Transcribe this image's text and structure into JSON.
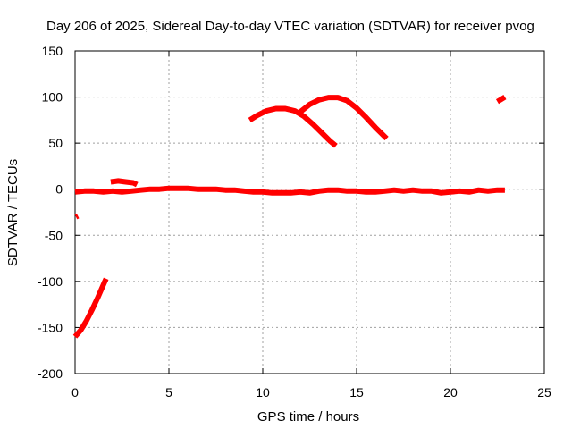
{
  "chart_data": {
    "type": "scatter",
    "title": "Day 206 of 2025, Sidereal Day-to-day VTEC variation (SDTVAR) for receiver pvog",
    "xlabel": "GPS time / hours",
    "ylabel": "SDTVAR / TECUs",
    "xlim": [
      0,
      25
    ],
    "ylim": [
      -200,
      150
    ],
    "xticks": [
      0,
      5,
      10,
      15,
      20,
      25
    ],
    "yticks": [
      -200,
      -150,
      -100,
      -50,
      0,
      50,
      100,
      150
    ],
    "xtick_labels": [
      "0",
      "5",
      "10",
      "15",
      "20",
      "25"
    ],
    "ytick_labels": [
      "-200",
      "-150",
      "-100",
      "-50",
      "0",
      "50",
      "100",
      "150"
    ],
    "grid": true,
    "color": "#ff0000",
    "series": [
      {
        "name": "baseline",
        "points": [
          [
            0.0,
            -3
          ],
          [
            0.5,
            -2
          ],
          [
            1.0,
            -2
          ],
          [
            1.5,
            -3
          ],
          [
            2.0,
            -2
          ],
          [
            2.5,
            -3
          ],
          [
            3.0,
            -2
          ],
          [
            3.5,
            -1
          ],
          [
            4.0,
            0
          ],
          [
            4.5,
            0
          ],
          [
            5.0,
            1
          ],
          [
            5.5,
            1
          ],
          [
            6.0,
            1
          ],
          [
            6.5,
            0
          ],
          [
            7.0,
            0
          ],
          [
            7.5,
            0
          ],
          [
            8.0,
            -1
          ],
          [
            8.5,
            -1
          ],
          [
            9.0,
            -2
          ],
          [
            9.5,
            -3
          ],
          [
            10.0,
            -3
          ],
          [
            10.5,
            -4
          ],
          [
            11.0,
            -4
          ],
          [
            11.5,
            -4
          ],
          [
            12.0,
            -3
          ],
          [
            12.5,
            -4
          ],
          [
            13.0,
            -2
          ],
          [
            13.5,
            -1
          ],
          [
            14.0,
            -1
          ],
          [
            14.5,
            -2
          ],
          [
            15.0,
            -2
          ],
          [
            15.5,
            -3
          ],
          [
            16.0,
            -3
          ],
          [
            16.5,
            -2
          ],
          [
            17.0,
            -1
          ],
          [
            17.5,
            -2
          ],
          [
            18.0,
            -1
          ],
          [
            18.5,
            -2
          ],
          [
            19.0,
            -2
          ],
          [
            19.5,
            -4
          ],
          [
            20.0,
            -3
          ],
          [
            20.5,
            -2
          ],
          [
            21.0,
            -3
          ],
          [
            21.5,
            -1
          ],
          [
            22.0,
            -2
          ],
          [
            22.5,
            -1
          ],
          [
            22.9,
            -1
          ]
        ]
      },
      {
        "name": "early-bump",
        "points": [
          [
            1.9,
            8
          ],
          [
            2.3,
            9
          ],
          [
            2.7,
            8
          ],
          [
            3.1,
            7
          ],
          [
            3.3,
            5
          ]
        ]
      },
      {
        "name": "descending-start",
        "points": [
          [
            0.0,
            -160
          ],
          [
            0.3,
            -153
          ],
          [
            0.6,
            -143
          ],
          [
            0.9,
            -131
          ],
          [
            1.2,
            -118
          ],
          [
            1.5,
            -104
          ],
          [
            1.65,
            -97
          ]
        ]
      },
      {
        "name": "isolated-point",
        "points": [
          [
            0.05,
            -30
          ],
          [
            0.15,
            -29
          ]
        ]
      },
      {
        "name": "arc-a",
        "points": [
          [
            9.3,
            75
          ],
          [
            9.7,
            80
          ],
          [
            10.2,
            85
          ],
          [
            10.7,
            87.5
          ],
          [
            11.2,
            87.5
          ],
          [
            11.7,
            85
          ],
          [
            12.2,
            79
          ],
          [
            12.7,
            70
          ],
          [
            13.2,
            60
          ],
          [
            13.6,
            52
          ],
          [
            13.9,
            47
          ]
        ]
      },
      {
        "name": "arc-b",
        "points": [
          [
            12.0,
            84
          ],
          [
            12.5,
            92
          ],
          [
            13.0,
            97
          ],
          [
            13.5,
            99.5
          ],
          [
            14.0,
            99.5
          ],
          [
            14.5,
            96
          ],
          [
            15.0,
            88
          ],
          [
            15.5,
            78
          ],
          [
            16.0,
            67
          ],
          [
            16.6,
            55
          ]
        ]
      },
      {
        "name": "late-segment",
        "points": [
          [
            22.5,
            95
          ],
          [
            22.7,
            97.5
          ],
          [
            22.9,
            100
          ]
        ]
      }
    ]
  }
}
